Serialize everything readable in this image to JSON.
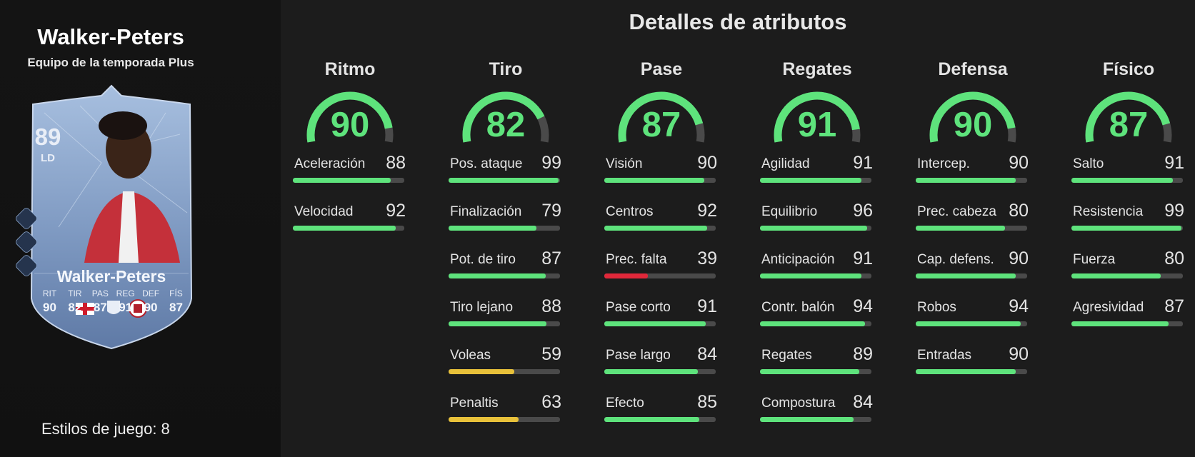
{
  "player": {
    "name": "Walker-Peters",
    "subtitle": "Equipo de la temporada Plus",
    "rating": "89",
    "position": "LD",
    "card_name": "Walker-Peters",
    "card_stats": [
      {
        "label": "RIT",
        "value": "90"
      },
      {
        "label": "TIR",
        "value": "82"
      },
      {
        "label": "PAS",
        "value": "87"
      },
      {
        "label": "REG",
        "value": "91"
      },
      {
        "label": "DEF",
        "value": "90"
      },
      {
        "label": "FÍS",
        "value": "87"
      }
    ],
    "playstyles_label": "Estilos de juego: 8"
  },
  "section_title": "Detalles de atributos",
  "colors": {
    "green": "#5ee37c",
    "yellow": "#e8c13a",
    "red": "#e0283a",
    "track": "#4a4a4a"
  },
  "categories": [
    {
      "title": "Ritmo",
      "value": 90,
      "attributes": [
        {
          "name": "Aceleración",
          "value": 88
        },
        {
          "name": "Velocidad",
          "value": 92
        }
      ]
    },
    {
      "title": "Tiro",
      "value": 82,
      "attributes": [
        {
          "name": "Pos. ataque",
          "value": 99
        },
        {
          "name": "Finalización",
          "value": 79
        },
        {
          "name": "Pot. de tiro",
          "value": 87
        },
        {
          "name": "Tiro lejano",
          "value": 88
        },
        {
          "name": "Voleas",
          "value": 59
        },
        {
          "name": "Penaltis",
          "value": 63
        }
      ]
    },
    {
      "title": "Pase",
      "value": 87,
      "attributes": [
        {
          "name": "Visión",
          "value": 90
        },
        {
          "name": "Centros",
          "value": 92
        },
        {
          "name": "Prec. falta",
          "value": 39
        },
        {
          "name": "Pase corto",
          "value": 91
        },
        {
          "name": "Pase largo",
          "value": 84
        },
        {
          "name": "Efecto",
          "value": 85
        }
      ]
    },
    {
      "title": "Regates",
      "value": 91,
      "attributes": [
        {
          "name": "Agilidad",
          "value": 91
        },
        {
          "name": "Equilibrio",
          "value": 96
        },
        {
          "name": "Anticipación",
          "value": 91
        },
        {
          "name": "Contr. balón",
          "value": 94
        },
        {
          "name": "Regates",
          "value": 89
        },
        {
          "name": "Compostura",
          "value": 84
        }
      ]
    },
    {
      "title": "Defensa",
      "value": 90,
      "attributes": [
        {
          "name": "Intercep.",
          "value": 90
        },
        {
          "name": "Prec. cabeza",
          "value": 80
        },
        {
          "name": "Cap. defens.",
          "value": 90
        },
        {
          "name": "Robos",
          "value": 94
        },
        {
          "name": "Entradas",
          "value": 90
        }
      ]
    },
    {
      "title": "Físico",
      "value": 87,
      "attributes": [
        {
          "name": "Salto",
          "value": 91
        },
        {
          "name": "Resistencia",
          "value": 99
        },
        {
          "name": "Fuerza",
          "value": 80
        },
        {
          "name": "Agresividad",
          "value": 87
        }
      ]
    }
  ]
}
